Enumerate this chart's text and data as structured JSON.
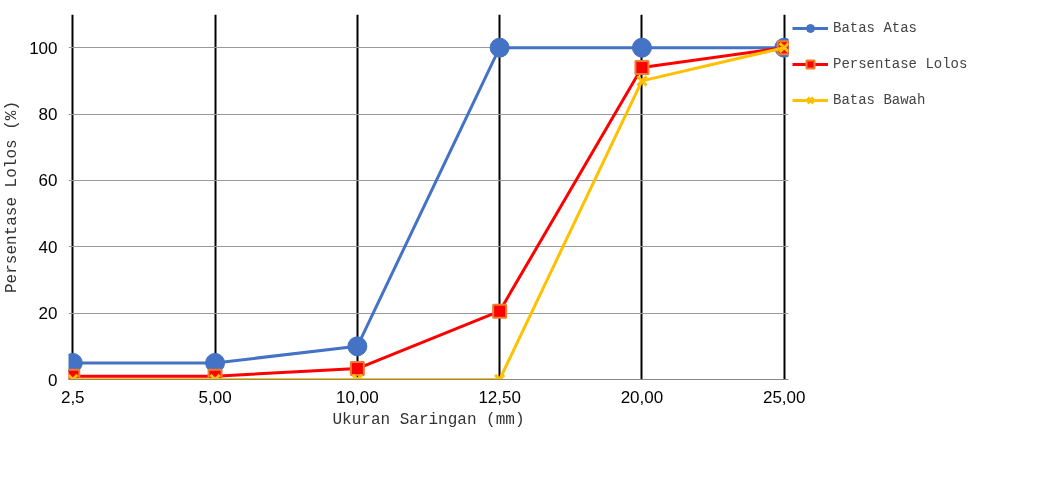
{
  "chart_data": {
    "type": "line",
    "xlabel": "Ukuran Saringan (mm)",
    "ylabel": "Persentase Lolos (%)",
    "categories": [
      "2,5",
      "5,00",
      "10,00",
      "12,50",
      "20,00",
      "25,00"
    ],
    "series": [
      {
        "name": "Batas Atas",
        "color": "#4472c4",
        "marker": "circle",
        "values": [
          5,
          5,
          10,
          100,
          100,
          100
        ]
      },
      {
        "name": "Persentase Lolos",
        "color": "#ff0000",
        "marker": "square",
        "values": [
          1,
          1,
          3.3,
          20.6,
          94,
          100
        ]
      },
      {
        "name": "Batas Bawah",
        "color": "#ffc000",
        "marker": "cross",
        "values": [
          0,
          0,
          0,
          0,
          90,
          100
        ]
      }
    ],
    "ylim": [
      0,
      110
    ],
    "yticks": [
      0,
      20,
      40,
      60,
      80,
      100
    ],
    "grid": true,
    "legend": "right"
  }
}
